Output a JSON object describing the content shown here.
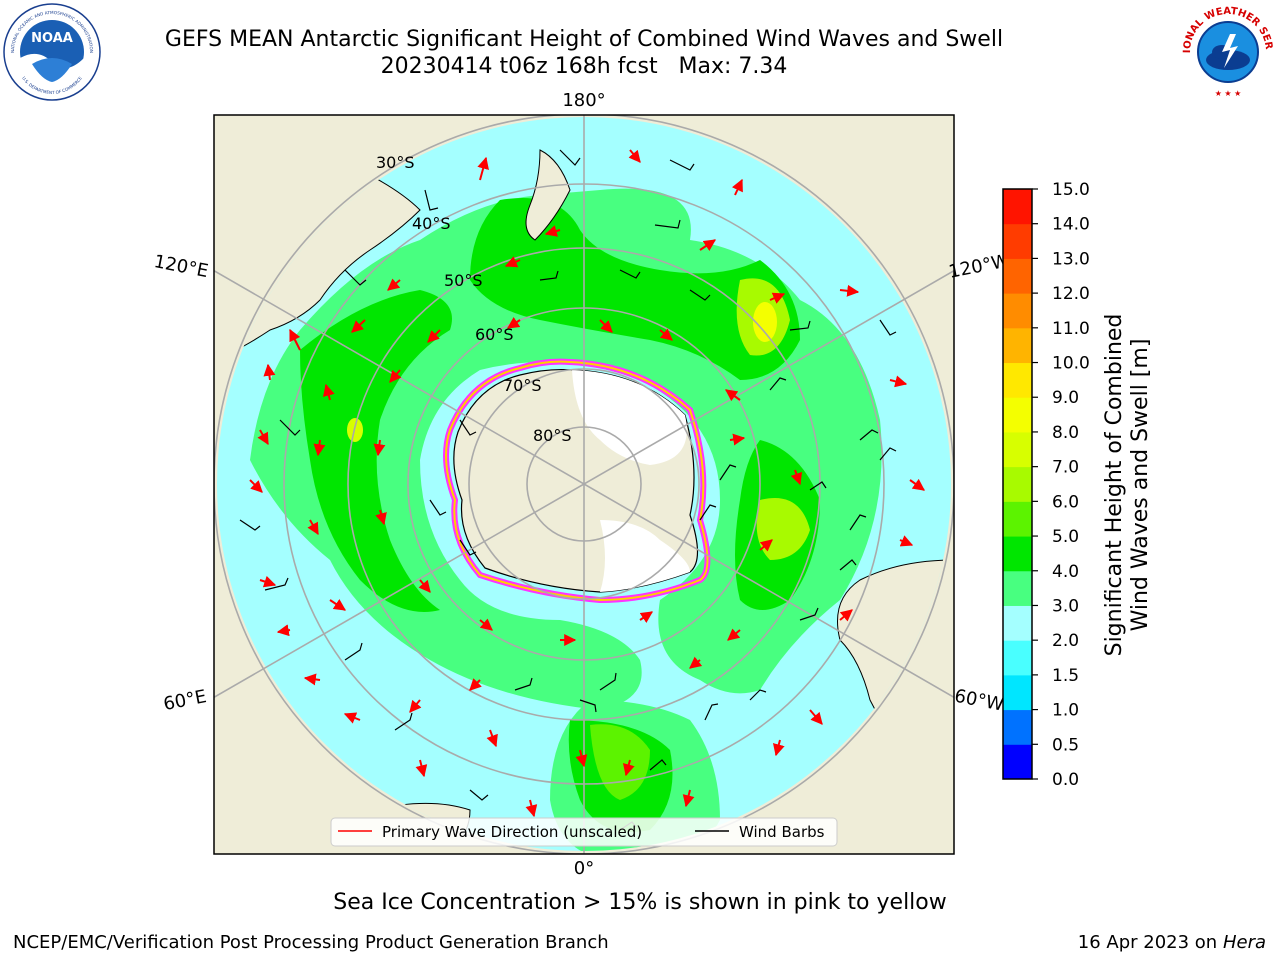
{
  "header": {
    "title_line1": "GEFS MEAN Antarctic Significant Height of Combined Wind Waves and Swell",
    "title_line2": "20230414 t06z 168h fcst   Max: 7.34"
  },
  "logos": {
    "noaa_text": "NOAA",
    "noaa_ring_top": "NATIONAL OCEANIC AND ATMOSPHERIC ADMINISTRATION",
    "noaa_ring_bottom": "U.S. DEPARTMENT OF COMMERCE",
    "nws_ring": "NATIONAL WEATHER SERVICE"
  },
  "map": {
    "longitude_labels": {
      "top": "180°",
      "bottom": "0°",
      "upper_left": "120°E",
      "upper_right": "120°W",
      "lower_left": "60°E",
      "lower_right": "60°W"
    },
    "latitude_labels": [
      "30°S",
      "40°S",
      "50°S",
      "60°S",
      "70°S",
      "80°S"
    ],
    "legend": {
      "wave_direction": "Primary Wave Direction (unscaled)",
      "wind_barbs": "Wind Barbs"
    }
  },
  "colorbar": {
    "label_line1": "Significant Height of Combined",
    "label_line2": "Wind Waves and Swell [m]",
    "ticks": [
      "0.0",
      "0.5",
      "1.0",
      "1.5",
      "2.0",
      "3.0",
      "4.0",
      "5.0",
      "6.0",
      "7.0",
      "8.0",
      "9.0",
      "10.0",
      "11.0",
      "12.0",
      "13.0",
      "14.0",
      "15.0"
    ],
    "colors": [
      "#0000ff",
      "#0072ff",
      "#00e6ff",
      "#49ffff",
      "#a4ffff",
      "#48ff80",
      "#00e600",
      "#5cf300",
      "#a8fa00",
      "#d7ff00",
      "#f4ff00",
      "#ffe800",
      "#ffb400",
      "#ff8c00",
      "#ff6400",
      "#ff3c00",
      "#ff1400"
    ]
  },
  "note": "Sea Ice Concentration > 15% is shown in pink to yellow",
  "footer": {
    "left": "NCEP/EMC/Verification Post Processing Product Generation Branch",
    "right_date": "16 Apr 2023 on ",
    "right_host": "Hera"
  }
}
